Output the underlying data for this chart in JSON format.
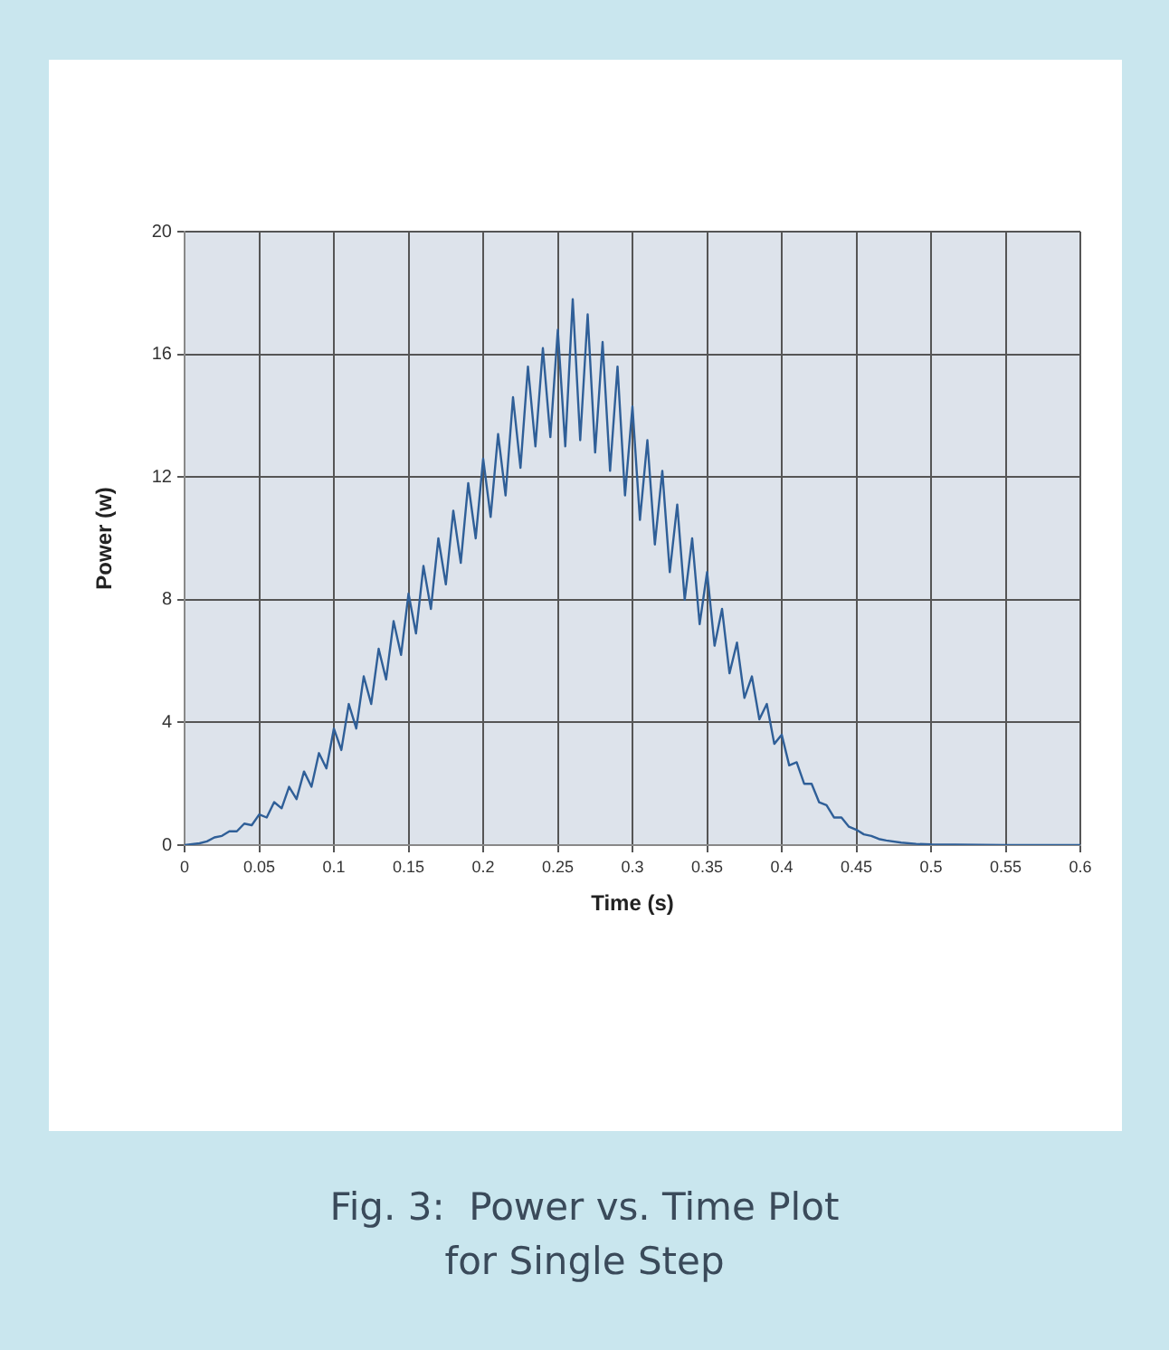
{
  "chart_data": {
    "type": "line",
    "title": "Fig. 3:  Power vs. Time Plot\nfor Single Step",
    "xlabel": "Time (s)",
    "ylabel": "Power (w)",
    "x": [
      0,
      0.005,
      0.01,
      0.015,
      0.02,
      0.025,
      0.03,
      0.035,
      0.04,
      0.045,
      0.05,
      0.055,
      0.06,
      0.065,
      0.07,
      0.075,
      0.08,
      0.085,
      0.09,
      0.095,
      0.1,
      0.105,
      0.11,
      0.115,
      0.12,
      0.125,
      0.13,
      0.135,
      0.14,
      0.145,
      0.15,
      0.155,
      0.16,
      0.165,
      0.17,
      0.175,
      0.18,
      0.185,
      0.19,
      0.195,
      0.2,
      0.205,
      0.21,
      0.215,
      0.22,
      0.225,
      0.23,
      0.235,
      0.24,
      0.245,
      0.25,
      0.255,
      0.26,
      0.265,
      0.27,
      0.275,
      0.28,
      0.285,
      0.29,
      0.295,
      0.3,
      0.305,
      0.31,
      0.315,
      0.32,
      0.325,
      0.33,
      0.335,
      0.34,
      0.345,
      0.35,
      0.355,
      0.36,
      0.365,
      0.37,
      0.375,
      0.38,
      0.385,
      0.39,
      0.395,
      0.4,
      0.405,
      0.41,
      0.415,
      0.42,
      0.425,
      0.43,
      0.435,
      0.44,
      0.445,
      0.45,
      0.455,
      0.46,
      0.465,
      0.47,
      0.48,
      0.49,
      0.5,
      0.55,
      0.6
    ],
    "series": [
      {
        "color": "#2f5f98",
        "values": [
          0,
          0.03,
          0.06,
          0.12,
          0.25,
          0.3,
          0.45,
          0.45,
          0.7,
          0.65,
          1.0,
          0.9,
          1.4,
          1.2,
          1.9,
          1.5,
          2.4,
          1.9,
          3.0,
          2.5,
          3.8,
          3.1,
          4.6,
          3.8,
          5.5,
          4.6,
          6.4,
          5.4,
          7.3,
          6.2,
          8.2,
          6.9,
          9.1,
          7.7,
          10.0,
          8.5,
          10.9,
          9.2,
          11.8,
          10.0,
          12.6,
          10.7,
          13.4,
          11.4,
          14.6,
          12.3,
          15.6,
          13.0,
          16.2,
          13.3,
          16.8,
          13.0,
          17.8,
          13.2,
          17.3,
          12.8,
          16.4,
          12.2,
          15.6,
          11.4,
          14.3,
          10.6,
          13.2,
          9.8,
          12.2,
          8.9,
          11.1,
          8.0,
          10.0,
          7.2,
          8.9,
          6.5,
          7.7,
          5.6,
          6.6,
          4.8,
          5.5,
          4.1,
          4.6,
          3.3,
          3.6,
          2.6,
          2.7,
          2.0,
          2.0,
          1.4,
          1.3,
          0.9,
          0.9,
          0.6,
          0.5,
          0.35,
          0.3,
          0.2,
          0.15,
          0.08,
          0.04,
          0.02,
          0,
          0
        ]
      }
    ],
    "xlim": [
      0,
      0.6
    ],
    "xticks": [
      0,
      0.05,
      0.1,
      0.15,
      0.2,
      0.25,
      0.3,
      0.35,
      0.4,
      0.45,
      0.5,
      0.55,
      0.6
    ],
    "ylim": [
      0,
      20
    ],
    "yticks": [
      0,
      4,
      8,
      12,
      16,
      20
    ],
    "grid": true,
    "legend": false,
    "marker": "none",
    "line_style": "solid"
  }
}
